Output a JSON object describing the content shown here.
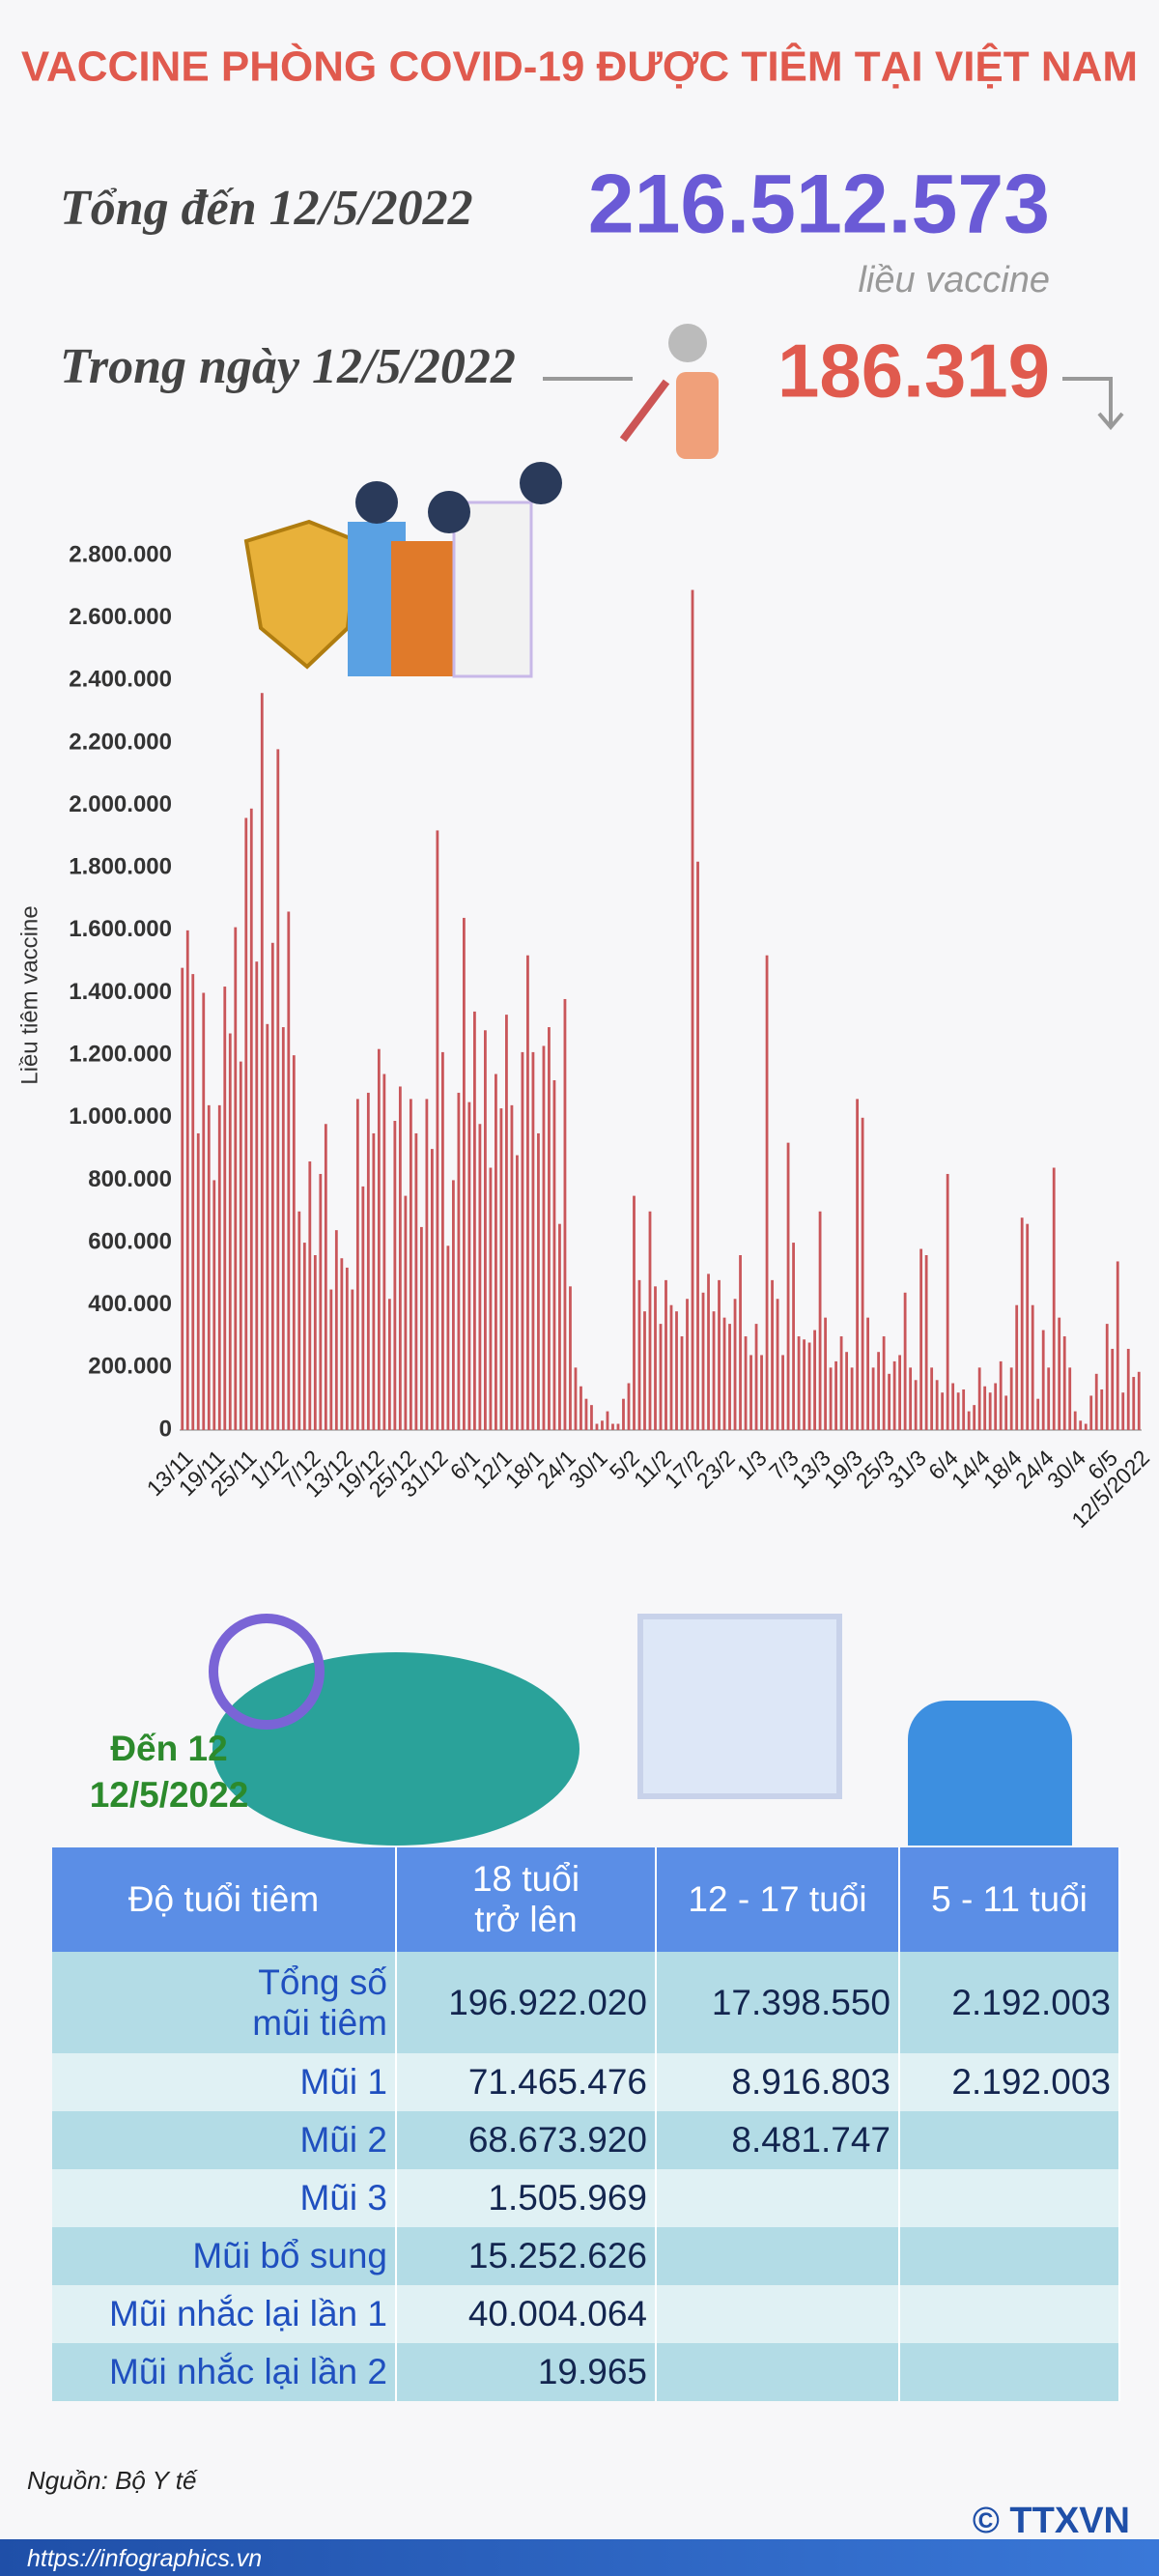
{
  "header": {
    "title": "VACCINE PHÒNG COVID-19 ĐƯỢC TIÊM TẠI VIỆT NAM",
    "total_label": "Tổng đến 12/5/2022",
    "total_value": "216.512.573",
    "total_unit": "liều vaccine",
    "day_label": "Trong ngày 12/5/2022",
    "day_value": "186.319"
  },
  "chart_data": {
    "type": "bar",
    "y_label": "Liều tiêm vaccine",
    "color": "#c9565a",
    "categories": [
      "13/11",
      null,
      null,
      null,
      null,
      null,
      "19/11",
      null,
      null,
      null,
      null,
      null,
      "25/11",
      null,
      null,
      null,
      null,
      null,
      "1/12",
      null,
      null,
      null,
      null,
      null,
      "7/12",
      null,
      null,
      null,
      null,
      null,
      "13/12",
      null,
      null,
      null,
      null,
      null,
      "19/12",
      null,
      null,
      null,
      null,
      null,
      "25/12",
      null,
      null,
      null,
      null,
      null,
      "31/12",
      null,
      null,
      null,
      null,
      null,
      "6/1",
      null,
      null,
      null,
      null,
      null,
      "12/1",
      null,
      null,
      null,
      null,
      null,
      "18/1",
      null,
      null,
      null,
      null,
      null,
      "24/1",
      null,
      null,
      null,
      null,
      null,
      "30/1",
      null,
      null,
      null,
      null,
      null,
      "5/2",
      null,
      null,
      null,
      null,
      null,
      "11/2",
      null,
      null,
      null,
      null,
      null,
      "17/2",
      null,
      null,
      null,
      null,
      null,
      "23/2",
      null,
      null,
      null,
      null,
      null,
      "1/3",
      null,
      null,
      null,
      null,
      null,
      "7/3",
      null,
      null,
      null,
      null,
      null,
      "13/3",
      null,
      null,
      null,
      null,
      null,
      "19/3",
      null,
      null,
      null,
      null,
      null,
      "25/3",
      null,
      null,
      null,
      null,
      null,
      "31/3",
      null,
      null,
      null,
      null,
      null,
      "6/4",
      null,
      null,
      null,
      null,
      null,
      "14/4",
      null,
      null,
      null,
      null,
      null,
      "18/4",
      null,
      null,
      null,
      null,
      null,
      "24/4",
      null,
      null,
      null,
      null,
      null,
      "30/4",
      null,
      null,
      null,
      null,
      null,
      "6/5",
      null,
      null,
      null,
      null,
      null,
      "12/5/2022"
    ],
    "values": [
      1480000,
      1600000,
      1460000,
      950000,
      1400000,
      1040000,
      800000,
      1040000,
      1420000,
      1270000,
      1610000,
      1180000,
      1960000,
      1990000,
      1500000,
      2360000,
      1300000,
      1560000,
      2180000,
      1290000,
      1660000,
      1200000,
      700000,
      600000,
      860000,
      560000,
      820000,
      980000,
      450000,
      640000,
      550000,
      520000,
      450000,
      1060000,
      780000,
      1080000,
      950000,
      1220000,
      1140000,
      420000,
      990000,
      1100000,
      750000,
      1060000,
      950000,
      650000,
      1060000,
      900000,
      1920000,
      1210000,
      590000,
      800000,
      1080000,
      1640000,
      1050000,
      1340000,
      980000,
      1280000,
      840000,
      1140000,
      1030000,
      1330000,
      1040000,
      880000,
      1210000,
      1520000,
      1210000,
      950000,
      1230000,
      1290000,
      1120000,
      660000,
      1380000,
      460000,
      200000,
      140000,
      100000,
      80000,
      20000,
      30000,
      60000,
      20000,
      20000,
      100000,
      150000,
      750000,
      480000,
      380000,
      700000,
      460000,
      340000,
      480000,
      400000,
      380000,
      300000,
      420000,
      2690000,
      1820000,
      440000,
      500000,
      380000,
      480000,
      360000,
      340000,
      420000,
      560000,
      300000,
      240000,
      340000,
      240000,
      1520000,
      480000,
      420000,
      240000,
      920000,
      600000,
      300000,
      290000,
      280000,
      320000,
      700000,
      360000,
      200000,
      220000,
      300000,
      250000,
      200000,
      1060000,
      1000000,
      360000,
      200000,
      250000,
      300000,
      180000,
      220000,
      240000,
      440000,
      200000,
      160000,
      580000,
      560000,
      200000,
      160000,
      120000,
      820000,
      150000,
      120000,
      130000,
      60000,
      80000,
      200000,
      140000,
      120000,
      150000,
      220000,
      110000,
      200000,
      400000,
      680000,
      660000,
      400000,
      100000,
      320000,
      200000,
      840000,
      360000,
      300000,
      200000,
      60000,
      30000,
      20000,
      110000,
      180000,
      130000,
      340000,
      260000,
      540000,
      120000,
      260000,
      170000,
      186319
    ],
    "ylim": [
      0,
      2800000
    ],
    "yticks": [
      0,
      {
        "value": 200000,
        "label": "200.000"
      },
      {
        "value": 400000,
        "label": "400.000"
      },
      {
        "value": 600000,
        "label": "600.000"
      },
      {
        "value": 800000,
        "label": "800.000"
      },
      {
        "value": 1000000,
        "label": "1.000.000"
      },
      {
        "value": 1200000,
        "label": "1.200.000"
      },
      {
        "value": 1400000,
        "label": "1.400.000"
      },
      {
        "value": 1600000,
        "label": "1.600.000"
      },
      {
        "value": 1800000,
        "label": "1.800.000"
      },
      {
        "value": 2000000,
        "label": "2.000.000"
      },
      {
        "value": 2200000,
        "label": "2.200.000"
      },
      {
        "value": 2400000,
        "label": "2.400.000"
      },
      {
        "value": 2600000,
        "label": "2.600.000"
      },
      {
        "value": 2800000,
        "label": "2.800.000"
      }
    ]
  },
  "table_caption": [
    "Đến 12",
    "12/5/2022"
  ],
  "table": {
    "header": [
      "Độ tuổi tiêm",
      "18 tuổi trở lên",
      "12 - 17 tuổi",
      "5 - 11 tuổi"
    ],
    "rows": [
      [
        "Tổng số mũi tiêm",
        "196.922.020",
        "17.398.550",
        "2.192.003"
      ],
      [
        "Mũi 1",
        "71.465.476",
        "8.916.803",
        "2.192.003"
      ],
      [
        "Mũi 2",
        "68.673.920",
        "8.481.747"
      ],
      [
        "Mũi 3",
        "1.505.969"
      ],
      [
        "Mũi bổ sung",
        "15.252.626"
      ],
      [
        "Mũi nhắc lại lần 1",
        "40.004.064"
      ],
      [
        "Mũi nhắc lại lần 2",
        "19.965"
      ]
    ]
  },
  "source": "Nguồn: Bộ Y tế",
  "url": "https://infographics.vn",
  "logo": "© TTXVN"
}
